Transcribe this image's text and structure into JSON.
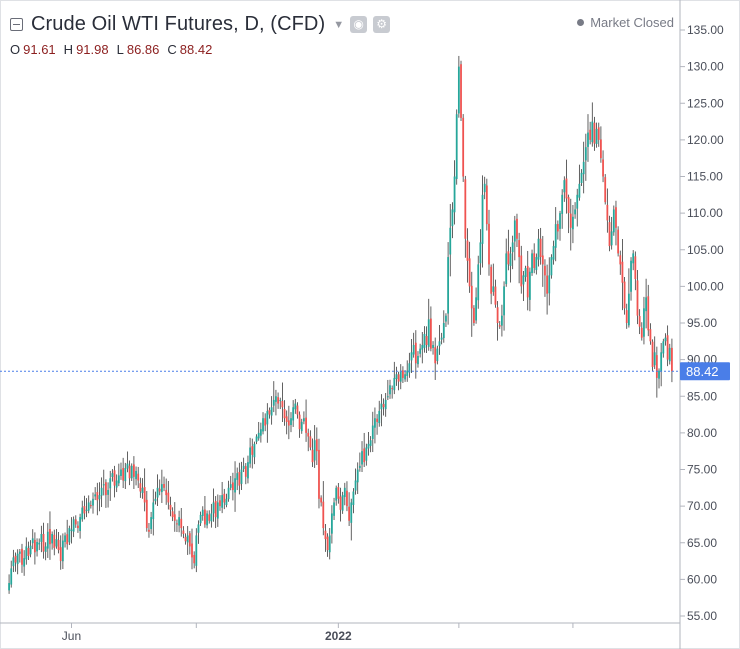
{
  "header": {
    "title": "Crude Oil WTI Futures, D, (CFD)",
    "status": "Market Closed",
    "ohlc": [
      {
        "label": "O",
        "value": "91.61"
      },
      {
        "label": "H",
        "value": "91.98"
      },
      {
        "label": "L",
        "value": "86.86"
      },
      {
        "label": "C",
        "value": "88.42"
      }
    ]
  },
  "colors": {
    "up": "#26a69a",
    "down": "#ef5350",
    "last_price_label": "#4a7ee8",
    "ohlc_values": "#8c1f1f"
  },
  "icons": [
    "collapse-icon",
    "caret-down-icon",
    "eye-icon",
    "gear-icon"
  ],
  "chart_data": {
    "type": "candlestick",
    "ylim": [
      53.5,
      137
    ],
    "y_ticks": [
      "55.00",
      "60.00",
      "65.00",
      "70.00",
      "75.00",
      "80.00",
      "85.00",
      "90.00",
      "95.00",
      "100.00",
      "105.00",
      "110.00",
      "115.00",
      "120.00",
      "125.00",
      "130.00",
      "135.00"
    ],
    "x_labels": [
      {
        "label": "Jun",
        "index": 29
      },
      {
        "label": "2022",
        "index": 153
      }
    ],
    "x_tick_indices": [
      29,
      87,
      153,
      209,
      262
    ],
    "last_price": 88.42,
    "last_price_label": "88.42",
    "closes": [
      59.5,
      61.5,
      63.0,
      62.3,
      63.5,
      63.8,
      62.0,
      62.9,
      64.5,
      63.2,
      64.6,
      65.6,
      63.7,
      65.1,
      65.0,
      66.2,
      63.8,
      64.5,
      66.5,
      64.8,
      66.2,
      64.3,
      65.5,
      64.0,
      62.5,
      65.3,
      66.0,
      64.8,
      67.0,
      66.8,
      68.2,
      67.5,
      67.0,
      68.5,
      69.8,
      69.0,
      69.5,
      70.5,
      70.0,
      71.0,
      71.6,
      70.8,
      71.5,
      72.5,
      73.0,
      71.5,
      72.2,
      73.8,
      74.5,
      72.8,
      73.5,
      74.2,
      75.0,
      73.5,
      75.2,
      75.8,
      73.8,
      75.5,
      74.0,
      74.8,
      73.5,
      72.0,
      72.5,
      70.5,
      67.0,
      66.5,
      68.5,
      70.5,
      71.0,
      72.5,
      72.0,
      73.0,
      72.5,
      71.5,
      70.5,
      69.5,
      68.5,
      68.0,
      67.5,
      68.5,
      67.0,
      66.2,
      65.2,
      66.0,
      64.5,
      63.0,
      62.2,
      66.0,
      67.5,
      68.8,
      69.5,
      67.5,
      69.0,
      68.0,
      69.0,
      70.5,
      68.5,
      70.5,
      70.0,
      71.5,
      70.5,
      71.0,
      72.5,
      73.0,
      72.2,
      73.8,
      74.5,
      72.8,
      75.0,
      75.5,
      74.0,
      76.0,
      78.0,
      77.0,
      78.5,
      79.5,
      80.0,
      80.5,
      82.0,
      81.0,
      83.0,
      82.5,
      83.5,
      84.5,
      85.0,
      84.0,
      84.5,
      83.5,
      82.0,
      81.5,
      81.0,
      82.0,
      83.5,
      84.0,
      82.5,
      80.5,
      81.5,
      82.0,
      80.0,
      79.5,
      78.0,
      76.0,
      79.0,
      77.5,
      71.0,
      70.5,
      67.0,
      65.5,
      64.0,
      66.0,
      69.0,
      70.5,
      72.5,
      71.0,
      69.5,
      71.5,
      72.5,
      70.0,
      68.0,
      70.5,
      72.0,
      73.5,
      75.0,
      75.5,
      77.5,
      76.0,
      78.0,
      78.5,
      79.0,
      81.0,
      82.0,
      81.5,
      83.0,
      84.0,
      83.5,
      84.5,
      85.0,
      86.5,
      86.0,
      87.5,
      88.0,
      87.0,
      88.5,
      87.5,
      88.0,
      88.5,
      89.5,
      91.0,
      92.0,
      89.5,
      90.5,
      91.5,
      92.0,
      93.5,
      92.0,
      95.5,
      91.5,
      92.0,
      89.5,
      91.5,
      92.5,
      93.0,
      95.0,
      96.0,
      104.0,
      108.0,
      110.5,
      115.0,
      123.5,
      130.0,
      123.0,
      115.0,
      106.5,
      103.5,
      100.0,
      97.0,
      95.0,
      98.5,
      103.0,
      106.0,
      112.5,
      114.0,
      108.5,
      103.0,
      99.0,
      100.0,
      97.5,
      95.0,
      94.5,
      96.0,
      100.0,
      104.5,
      103.0,
      104.5,
      106.0,
      109.0,
      106.5,
      104.0,
      100.0,
      101.5,
      102.5,
      98.5,
      102.0,
      104.5,
      102.5,
      104.0,
      106.5,
      104.0,
      103.0,
      101.5,
      99.0,
      101.5,
      104.0,
      105.5,
      108.5,
      107.5,
      110.0,
      112.5,
      114.5,
      112.0,
      110.0,
      108.0,
      109.5,
      110.5,
      112.5,
      114.0,
      115.5,
      117.0,
      119.0,
      121.0,
      120.0,
      122.5,
      119.5,
      121.5,
      120.0,
      117.5,
      115.0,
      111.5,
      109.0,
      105.5,
      107.5,
      110.5,
      108.0,
      104.5,
      103.0,
      100.5,
      97.0,
      95.0,
      99.0,
      103.5,
      104.5,
      101.0,
      96.0,
      94.5,
      93.0,
      97.0,
      98.5,
      94.0,
      92.5,
      89.0,
      91.0,
      87.5,
      88.5,
      91.0,
      92.5,
      93.0,
      90.0,
      91.61,
      88.42
    ]
  }
}
